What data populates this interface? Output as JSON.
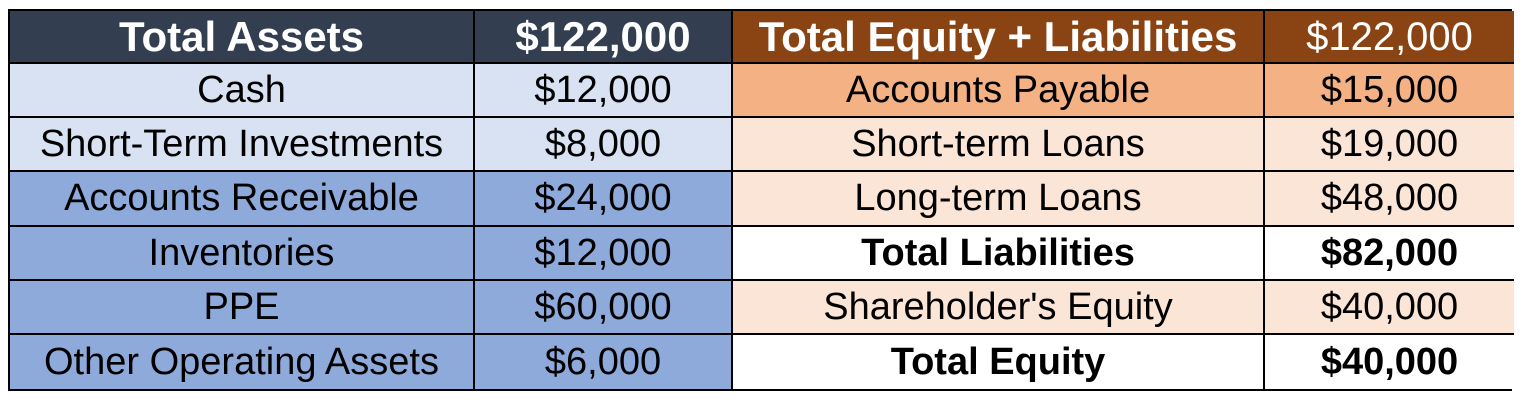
{
  "table": {
    "assets": {
      "header": {
        "label": "Total Assets",
        "value": "$122,000"
      },
      "rows": [
        {
          "label": "Cash",
          "value": "$12,000"
        },
        {
          "label": "Short-Term Investments",
          "value": "$8,000"
        },
        {
          "label": "Accounts Receivable",
          "value": "$24,000"
        },
        {
          "label": "Inventories",
          "value": "$12,000"
        },
        {
          "label": "PPE",
          "value": "$60,000"
        },
        {
          "label": "Other Operating Assets",
          "value": "$6,000"
        }
      ]
    },
    "liabilities": {
      "header": {
        "label": "Total Equity + Liabilities",
        "value": "$122,000"
      },
      "rows": [
        {
          "label": "Accounts Payable",
          "value": "$15,000"
        },
        {
          "label": "Short-term Loans",
          "value": "$19,000"
        },
        {
          "label": "Long-term Loans",
          "value": "$48,000"
        },
        {
          "label": "Total Liabilities",
          "value": "$82,000"
        },
        {
          "label": "Shareholder's Equity",
          "value": "$40,000"
        },
        {
          "label": "Total Equity",
          "value": "$40,000"
        }
      ]
    }
  },
  "colors": {
    "header_assets_bg": "#333F50",
    "header_liab_bg": "#8A4414",
    "light_blue": "#D9E2F3",
    "medium_blue": "#8EAADB",
    "orange": "#F4B183",
    "peach": "#FBE5D6",
    "total_bg": "#FFFFFF",
    "border_color": "#000000",
    "header_text": "#FFFFFF",
    "body_text": "#000000"
  }
}
